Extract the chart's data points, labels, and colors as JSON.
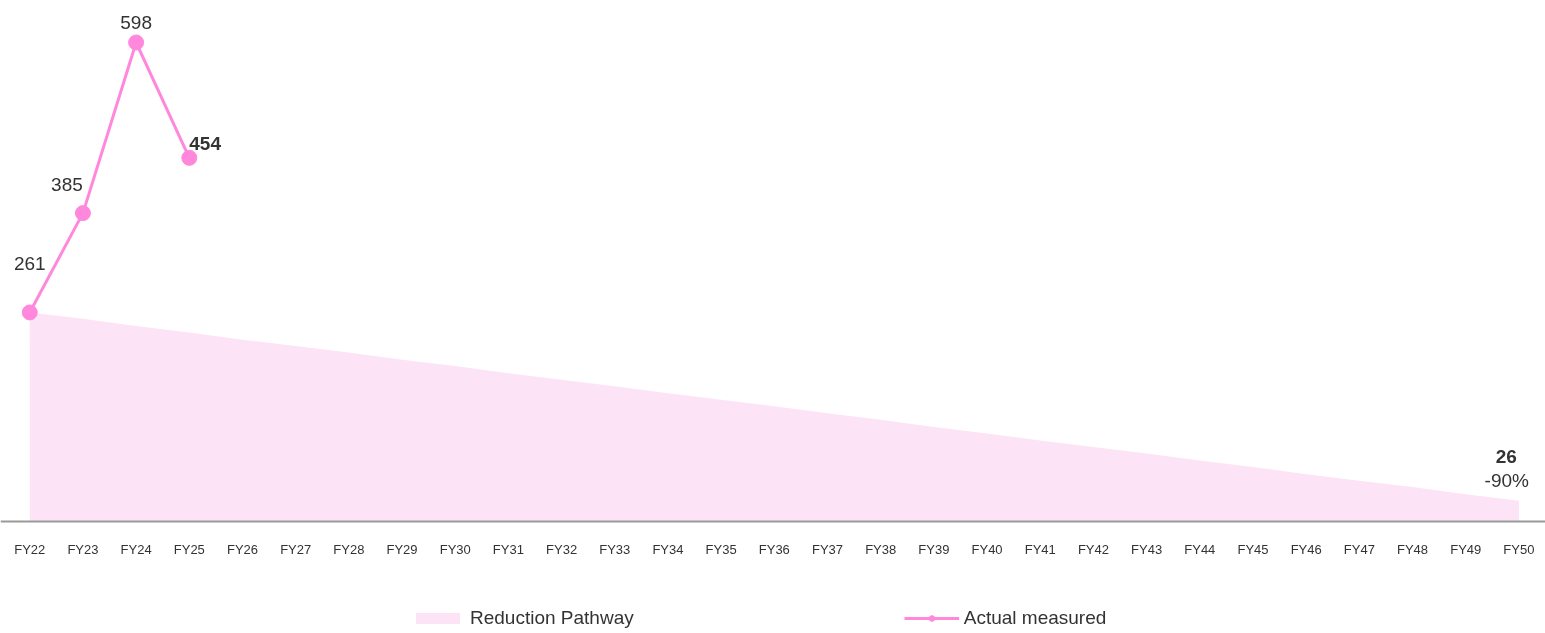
{
  "chart_data": {
    "type": "line",
    "categories": [
      "FY22",
      "FY23",
      "FY24",
      "FY25",
      "FY26",
      "FY27",
      "FY28",
      "FY29",
      "FY30",
      "FY31",
      "FY32",
      "FY33",
      "FY34",
      "FY35",
      "FY36",
      "FY37",
      "FY38",
      "FY39",
      "FY40",
      "FY41",
      "FY42",
      "FY43",
      "FY44",
      "FY45",
      "FY46",
      "FY47",
      "FY48",
      "FY49",
      "FY50"
    ],
    "series": [
      {
        "name": "Reduction Pathway",
        "type": "area",
        "color": "#fce4f6",
        "values": [
          261,
          253,
          244,
          236,
          227,
          219,
          211,
          202,
          194,
          185,
          177,
          169,
          160,
          152,
          144,
          135,
          127,
          118,
          110,
          101,
          93,
          85,
          76,
          68,
          59,
          51,
          43,
          34,
          26
        ],
        "value_labels": [
          null,
          null,
          null,
          null,
          null,
          null,
          null,
          null,
          null,
          null,
          null,
          null,
          null,
          null,
          null,
          null,
          null,
          null,
          null,
          null,
          null,
          null,
          null,
          null,
          null,
          null,
          null,
          null,
          "26"
        ]
      },
      {
        "name": "Actual measured",
        "marker": "circle",
        "color": "#ff88dd",
        "values": [
          261,
          385,
          598,
          454,
          null,
          null,
          null,
          null,
          null,
          null,
          null,
          null,
          null,
          null,
          null,
          null,
          null,
          null,
          null,
          null,
          null,
          null,
          null,
          null,
          null,
          null,
          null,
          null,
          null
        ],
        "value_labels": [
          "261",
          "385",
          "598",
          "454",
          null,
          null,
          null,
          null,
          null,
          null,
          null,
          null,
          null,
          null,
          null,
          null,
          null,
          null,
          null,
          null,
          null,
          null,
          null,
          null,
          null,
          null,
          null,
          null,
          null
        ]
      }
    ],
    "annotations": [
      {
        "text": "-90%",
        "x": "FY50",
        "y": 26
      }
    ],
    "tick_labels": "x",
    "grid": false,
    "legend": "bottom",
    "line_style": "solid"
  }
}
